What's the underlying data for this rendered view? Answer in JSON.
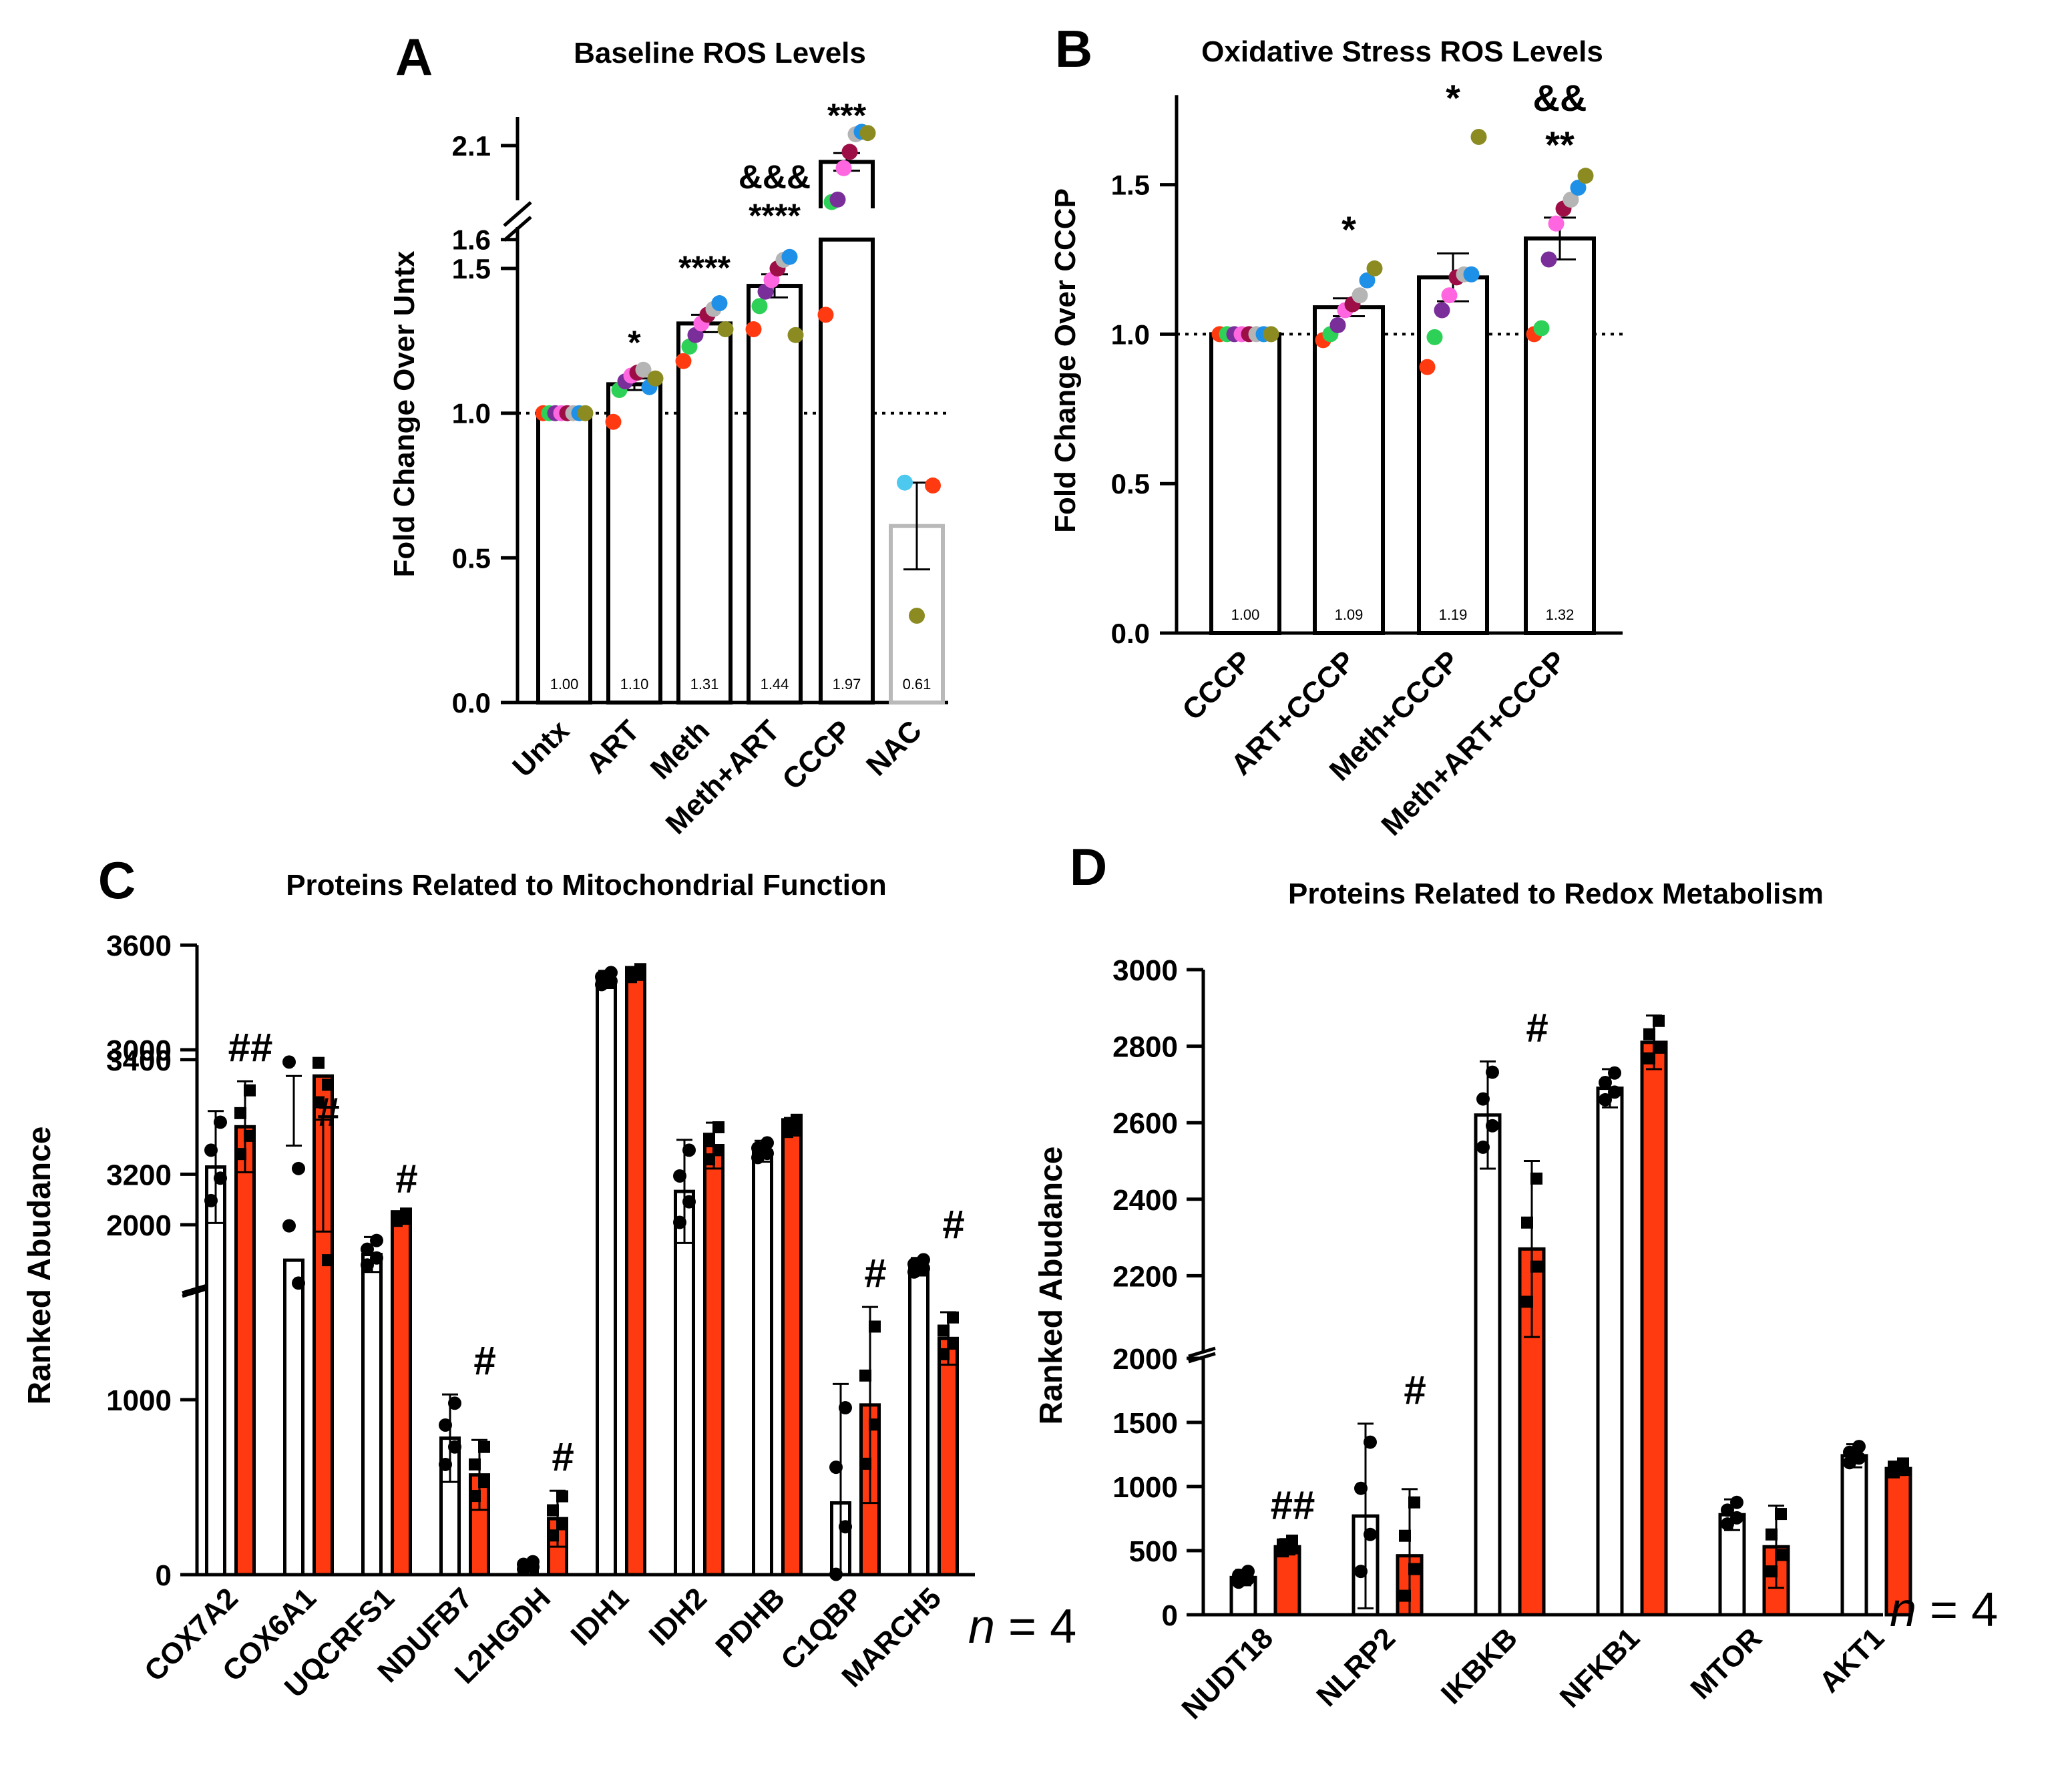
{
  "colors": {
    "red": "#FF3A10",
    "blue": "#1E7BC8",
    "gray": "#B9B9B9",
    "black": "#000000"
  },
  "chart_data": [
    {
      "id": "A",
      "letter": "A",
      "type": "bar",
      "title": "Baseline ROS Levels",
      "ylabel": "Fold Change Over Untx",
      "axis_break": {
        "lower_max": 1.6,
        "upper_min": 1.6,
        "upper_max": 2.25
      },
      "yticks": [
        "0.0",
        "0.5",
        "1.0",
        "1.5"
      ],
      "upper_ticks": [
        "1.6",
        "2.1"
      ],
      "reference_line": 1.0,
      "categories": [
        "Untx",
        "ART",
        "Meth",
        "Meth+ART",
        "CCCP",
        "NAC"
      ],
      "values": [
        1.0,
        1.1,
        1.31,
        1.44,
        1.97,
        0.61
      ],
      "value_labels": [
        "1.00",
        "1.10",
        "1.31",
        "1.44",
        "1.97",
        "0.61"
      ],
      "sem": [
        0.0,
        0.02,
        0.03,
        0.04,
        0.07,
        0.15
      ],
      "bar_color": [
        "black",
        "black",
        "black",
        "black",
        "black",
        "gray"
      ],
      "significance": [
        [],
        [
          "*"
        ],
        [
          "****"
        ],
        [
          "&&&",
          "****"
        ],
        [
          "***"
        ],
        []
      ],
      "points": [
        [
          1.0,
          1.0,
          1.0,
          1.0,
          1.0,
          1.0,
          1.0,
          1.0
        ],
        [
          0.97,
          1.08,
          1.11,
          1.13,
          1.14,
          1.15,
          1.09,
          1.12
        ],
        [
          1.18,
          1.23,
          1.27,
          1.31,
          1.34,
          1.36,
          1.38,
          1.29
        ],
        [
          1.29,
          1.37,
          1.42,
          1.46,
          1.5,
          1.53,
          1.54,
          1.27
        ],
        [
          1.34,
          1.65,
          1.67,
          1.92,
          2.05,
          2.19,
          2.21,
          2.2
        ]
      ],
      "nac_points": [
        0.76,
        0.75,
        0.3
      ]
    },
    {
      "id": "B",
      "letter": "B",
      "type": "bar",
      "title": "Oxidative Stress ROS Levels",
      "ylabel": "Fold Change Over CCCP",
      "ylim": [
        0,
        1.8
      ],
      "yticks": [
        "0.0",
        "0.5",
        "1.0",
        "1.5"
      ],
      "reference_line": 1.0,
      "categories": [
        "CCCP",
        "ART+CCCP",
        "Meth+CCCP",
        "Meth+ART+CCCP"
      ],
      "values": [
        1.0,
        1.09,
        1.19,
        1.32
      ],
      "value_labels": [
        "1.00",
        "1.09",
        "1.19",
        "1.32"
      ],
      "sem": [
        0.0,
        0.03,
        0.08,
        0.07
      ],
      "significance": [
        [],
        [
          "*"
        ],
        [
          "*"
        ],
        [
          "&&",
          "**"
        ]
      ],
      "points": [
        [
          1.0,
          1.0,
          1.0,
          1.0,
          1.0,
          1.0,
          1.0,
          1.0
        ],
        [
          0.98,
          1.0,
          1.03,
          1.08,
          1.1,
          1.13,
          1.18,
          1.22
        ],
        [
          0.89,
          0.99,
          1.08,
          1.13,
          1.19,
          1.2,
          1.2,
          1.66
        ],
        [
          1.0,
          1.02,
          1.25,
          1.37,
          1.42,
          1.45,
          1.49,
          1.53
        ]
      ]
    },
    {
      "id": "C",
      "letter": "C",
      "type": "bar",
      "title": "Proteins Related to Mitochondrial Function",
      "ylabel": "Ranked Abudance",
      "axis_break": {
        "lower_max": 3000,
        "upper_min": 3000,
        "upper_max": 3600
      },
      "yticks": [
        "0",
        "1000",
        "2000"
      ],
      "upper_ticks": [
        "3000",
        "3200",
        "3400",
        "3600"
      ],
      "categories": [
        "COX7A2",
        "COX6A1",
        "UQCRFS1",
        "NDUFB7",
        "L2HGDH",
        "IDH1",
        "IDH2",
        "PDHB",
        "C1QBP",
        "MARCH5"
      ],
      "series": [
        {
          "name": "group 1",
          "color": "white",
          "values": [
            2330,
            3050,
            1830,
            780,
            50,
            3540,
            3170,
            2420,
            410,
            1760
          ],
          "sd": [
            320,
            200,
            100,
            250,
            30,
            15,
            90,
            60,
            680,
            50
          ]
        },
        {
          "name": "group 2",
          "color": "red",
          "values": [
            2560,
            2850,
            2040,
            570,
            320,
            3550,
            3250,
            2560,
            970,
            1350
          ],
          "sd": [
            260,
            250,
            30,
            200,
            160,
            10,
            40,
            50,
            560,
            150
          ]
        }
      ],
      "significance": [
        "##",
        "#",
        "#",
        "#",
        "#",
        "",
        "",
        "",
        "#",
        "#"
      ],
      "n_label": "n",
      "n_value": "= 4"
    },
    {
      "id": "D",
      "letter": "D",
      "type": "bar",
      "title": "Proteins Related to Redox Metabolism",
      "ylabel": "Ranked Abudance",
      "axis_break": {
        "lower_max": 2000,
        "upper_min": 2000,
        "upper_max": 3000
      },
      "yticks": [
        "0",
        "500",
        "1000",
        "1500",
        "2000"
      ],
      "upper_ticks": [
        "2200",
        "2400",
        "2600",
        "2800",
        "3000"
      ],
      "categories": [
        "NUDT18",
        "NLRP2",
        "IKBKB",
        "NFKB1",
        "MTOR",
        "AKT1"
      ],
      "series": [
        {
          "name": "group 1",
          "color": "white",
          "values": [
            290,
            770,
            2620,
            2690,
            780,
            1240
          ],
          "sd": [
            60,
            720,
            140,
            50,
            120,
            90
          ]
        },
        {
          "name": "group 2",
          "color": "red",
          "values": [
            530,
            460,
            2270,
            2810,
            530,
            1140
          ],
          "sd": [
            60,
            520,
            230,
            70,
            320,
            50
          ]
        }
      ],
      "significance": [
        "##",
        "#",
        "#",
        "",
        "",
        ""
      ],
      "n_label": "n",
      "n_value": "= 4"
    }
  ]
}
